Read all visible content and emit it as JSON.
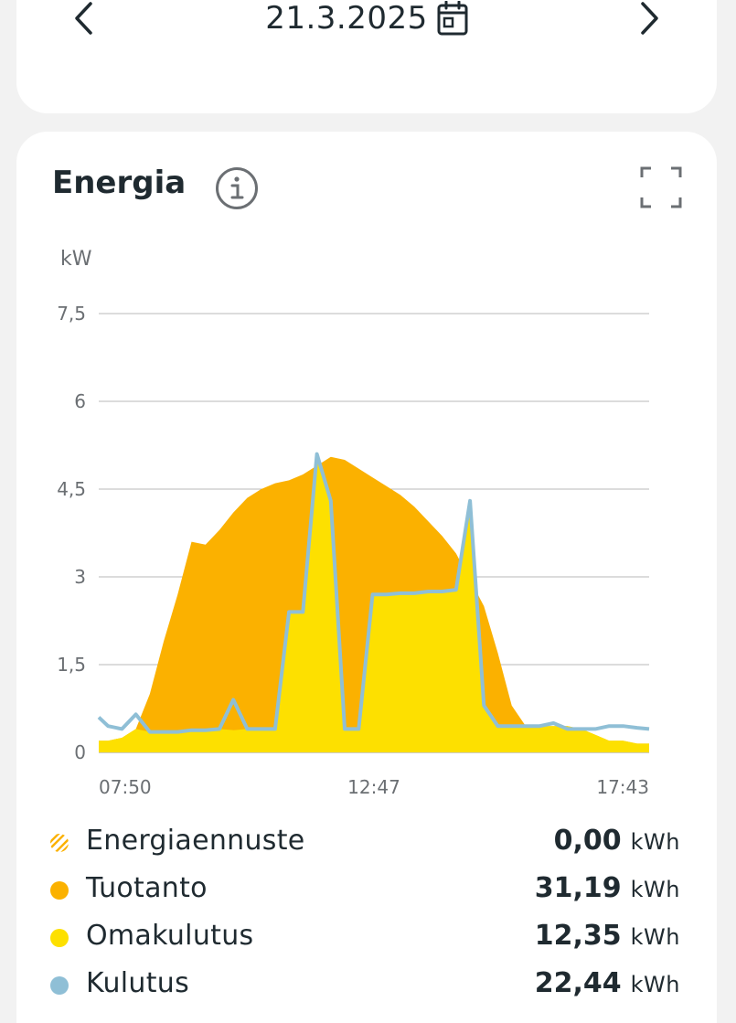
{
  "header": {
    "date": "21.3.2025",
    "prev_icon": "chevron-left-icon",
    "next_icon": "chevron-right-icon",
    "calendar_icon": "calendar-icon"
  },
  "card": {
    "title": "Energia",
    "info_icon": "info-icon",
    "expand_icon": "fullscreen-icon"
  },
  "chart_data": {
    "type": "area",
    "ylabel": "kW",
    "ylim": [
      0,
      7.5
    ],
    "yticks": [
      "7,5",
      "6",
      "4,5",
      "3",
      "1,5",
      "0"
    ],
    "ytick_values": [
      7.5,
      6,
      4.5,
      3,
      1.5,
      0
    ],
    "xticks": [
      "07:50",
      "12:47",
      "17:43"
    ],
    "grid": true,
    "x_hours": [
      7.833,
      8.0,
      8.25,
      8.5,
      8.75,
      9.0,
      9.25,
      9.5,
      9.75,
      10.0,
      10.25,
      10.5,
      10.75,
      11.0,
      11.25,
      11.5,
      11.75,
      12.0,
      12.25,
      12.5,
      12.75,
      13.0,
      13.25,
      13.5,
      13.75,
      14.0,
      14.25,
      14.5,
      14.75,
      15.0,
      15.25,
      15.5,
      15.75,
      16.0,
      16.25,
      16.5,
      16.75,
      17.0,
      17.25,
      17.5,
      17.717
    ],
    "series": [
      {
        "name": "Tuotanto",
        "color": "#fbb100",
        "values": [
          0.2,
          0.2,
          0.25,
          0.4,
          1.0,
          1.9,
          2.7,
          3.6,
          3.55,
          3.8,
          4.1,
          4.35,
          4.5,
          4.6,
          4.65,
          4.75,
          4.9,
          5.05,
          5.0,
          4.85,
          4.7,
          4.55,
          4.4,
          4.2,
          3.95,
          3.7,
          3.4,
          2.95,
          2.5,
          1.7,
          0.8,
          0.45,
          0.45,
          0.45,
          0.45,
          0.4,
          0.3,
          0.2,
          0.2,
          0.15,
          0.15
        ]
      },
      {
        "name": "Omakulutus",
        "color": "#fde000",
        "values": [
          0.2,
          0.2,
          0.25,
          0.4,
          0.35,
          0.35,
          0.35,
          0.38,
          0.38,
          0.4,
          0.38,
          0.4,
          0.4,
          0.38,
          2.4,
          2.4,
          5.1,
          4.3,
          0.4,
          0.4,
          2.7,
          2.7,
          2.72,
          2.72,
          2.75,
          2.75,
          2.78,
          4.3,
          0.8,
          0.45,
          0.45,
          0.45,
          0.45,
          0.45,
          0.45,
          0.4,
          0.3,
          0.2,
          0.2,
          0.15,
          0.15
        ]
      },
      {
        "name": "Kulutus",
        "color": "#8fbfd6",
        "values": [
          0.6,
          0.45,
          0.4,
          0.65,
          0.35,
          0.35,
          0.35,
          0.38,
          0.38,
          0.4,
          0.9,
          0.4,
          0.4,
          0.4,
          2.4,
          2.4,
          5.1,
          4.3,
          0.4,
          0.4,
          2.7,
          2.7,
          2.72,
          2.72,
          2.75,
          2.75,
          2.78,
          4.3,
          0.8,
          0.45,
          0.45,
          0.45,
          0.45,
          0.5,
          0.4,
          0.4,
          0.4,
          0.45,
          0.45,
          0.42,
          0.4
        ]
      }
    ]
  },
  "legend": [
    {
      "label": "Energiaennuste",
      "value": "0,00",
      "unit": "kWh",
      "color": "#fbb100",
      "marker": "hatched"
    },
    {
      "label": "Tuotanto",
      "value": "31,19",
      "unit": "kWh",
      "color": "#fbb100",
      "marker": "solid"
    },
    {
      "label": "Omakulutus",
      "value": "12,35",
      "unit": "kWh",
      "color": "#fde000",
      "marker": "solid"
    },
    {
      "label": "Kulutus",
      "value": "22,44",
      "unit": "kWh",
      "color": "#8fbfd6",
      "marker": "solid"
    }
  ]
}
